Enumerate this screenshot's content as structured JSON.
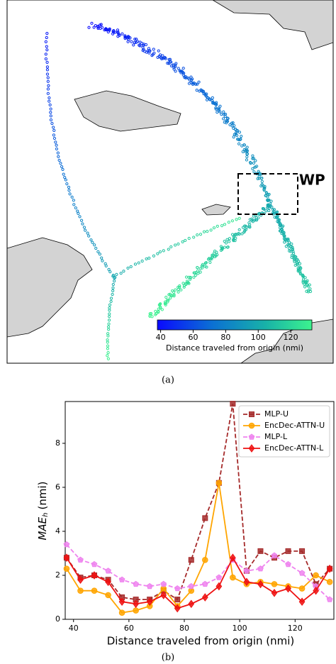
{
  "map": {
    "annotation": "WP",
    "caption": "(a)",
    "colorbar": {
      "label": "Distance traveled from origin (nmi)",
      "clim": [
        38,
        133
      ],
      "ticks": [
        40,
        60,
        80,
        100,
        120
      ]
    }
  },
  "chart_data": {
    "type": "line",
    "caption": "(b)",
    "x_label": "Distance traveled from origin (nmi)",
    "y_label": {
      "main": "MAE",
      "sub": "h",
      "unit": "(nmi)"
    },
    "x": [
      37.5,
      42.5,
      47.5,
      52.5,
      57.5,
      62.5,
      67.5,
      72.5,
      77.5,
      82.5,
      87.5,
      92.5,
      97.5,
      102.5,
      107.5,
      112.5,
      117.5,
      122.5,
      127.5,
      132.5
    ],
    "xlim": [
      37,
      134
    ],
    "xticks": [
      40,
      60,
      80,
      100,
      120
    ],
    "ylim": [
      0,
      9.9
    ],
    "yticks": [
      0,
      2,
      4,
      6,
      8
    ],
    "legend": "upper right",
    "series": [
      {
        "name": "MLP-U",
        "color": "#a52a2a",
        "marker": "square",
        "dash": true,
        "values": [
          2.8,
          1.9,
          2.0,
          1.8,
          1.0,
          0.9,
          0.9,
          1.3,
          0.9,
          2.7,
          4.6,
          6.2,
          9.8,
          2.2,
          3.1,
          2.8,
          3.1,
          3.1,
          1.6,
          2.3
        ]
      },
      {
        "name": "EncDec-ATTN-U",
        "color": "#ffa500",
        "marker": "circle",
        "dash": false,
        "values": [
          2.3,
          1.3,
          1.3,
          1.1,
          0.3,
          0.4,
          0.6,
          1.4,
          0.6,
          1.3,
          2.7,
          6.2,
          1.9,
          1.6,
          1.7,
          1.6,
          1.5,
          1.4,
          2.0,
          1.7
        ]
      },
      {
        "name": "MLP-L",
        "color": "#ee82ee",
        "marker": "pentagon",
        "dash": true,
        "values": [
          3.4,
          2.7,
          2.5,
          2.2,
          1.8,
          1.6,
          1.5,
          1.6,
          1.4,
          1.5,
          1.6,
          1.9,
          2.7,
          2.2,
          2.3,
          2.9,
          2.5,
          2.1,
          1.5,
          0.9
        ]
      },
      {
        "name": "EncDec-ATTN-L",
        "color": "#ee1111",
        "marker": "diamond",
        "dash": false,
        "values": [
          2.8,
          1.8,
          2.0,
          1.7,
          0.8,
          0.7,
          0.8,
          1.1,
          0.5,
          0.7,
          1.0,
          1.5,
          2.8,
          1.7,
          1.6,
          1.2,
          1.4,
          0.8,
          1.3,
          2.3
        ]
      }
    ]
  }
}
